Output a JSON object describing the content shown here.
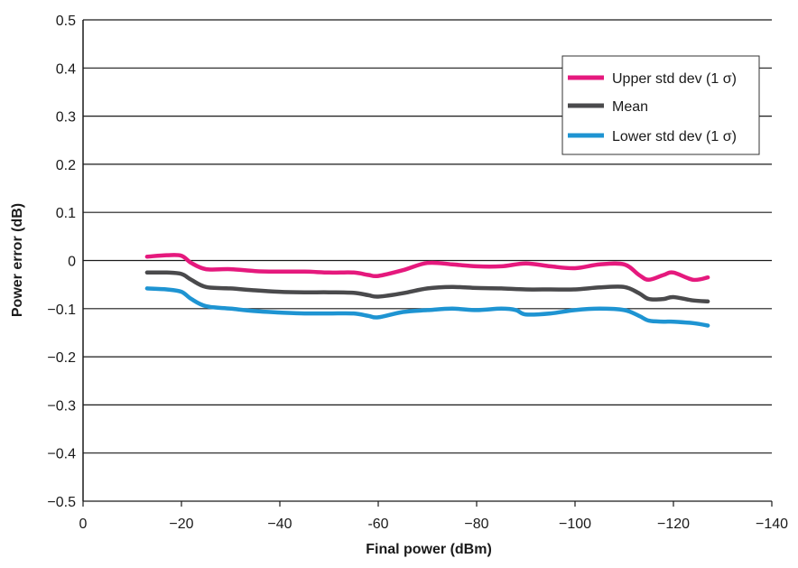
{
  "chart_data": {
    "type": "line",
    "xlabel": "Final power (dBm)",
    "ylabel": "Power error (dB)",
    "xlim": [
      0,
      -140
    ],
    "ylim": [
      -0.5,
      0.5
    ],
    "x_ticks": [
      0,
      -20,
      -40,
      -60,
      -80,
      -100,
      -120,
      -140
    ],
    "x_tick_labels": [
      "0",
      "−20",
      "−40",
      "-60",
      "−80",
      "−100",
      "−120",
      "−140"
    ],
    "y_ticks": [
      0.5,
      0.4,
      0.3,
      0.2,
      0.1,
      0,
      -0.1,
      -0.2,
      -0.3,
      -0.4,
      -0.5
    ],
    "y_tick_labels": [
      "0.5",
      "0.4",
      "0.3",
      "0.2",
      "0.1",
      "0",
      "−0.1",
      "−0.2",
      "−0.3",
      "−0.4",
      "−0.5"
    ],
    "grid": "horizontal",
    "legend_position": "top-right",
    "series": [
      {
        "name": "Upper std dev (1 σ)",
        "color": "#e5197d",
        "x": [
          -13,
          -17,
          -20,
          -22,
          -25,
          -30,
          -35,
          -40,
          -45,
          -50,
          -55,
          -58,
          -60,
          -65,
          -70,
          -75,
          -80,
          -85,
          -90,
          -95,
          -100,
          -105,
          -110,
          -113,
          -115,
          -118,
          -120,
          -124,
          -127
        ],
        "y": [
          0.008,
          0.011,
          0.01,
          -0.005,
          -0.018,
          -0.018,
          -0.022,
          -0.023,
          -0.023,
          -0.025,
          -0.025,
          -0.03,
          -0.032,
          -0.02,
          -0.005,
          -0.008,
          -0.012,
          -0.012,
          -0.006,
          -0.012,
          -0.016,
          -0.008,
          -0.008,
          -0.03,
          -0.04,
          -0.03,
          -0.025,
          -0.04,
          -0.035
        ]
      },
      {
        "name": "Mean",
        "color": "#4a4a4c",
        "x": [
          -13,
          -17,
          -20,
          -22,
          -25,
          -30,
          -35,
          -40,
          -45,
          -50,
          -55,
          -58,
          -60,
          -65,
          -70,
          -75,
          -80,
          -85,
          -90,
          -95,
          -100,
          -105,
          -110,
          -113,
          -115,
          -118,
          -120,
          -124,
          -127
        ],
        "y": [
          -0.025,
          -0.025,
          -0.028,
          -0.04,
          -0.055,
          -0.058,
          -0.062,
          -0.065,
          -0.066,
          -0.066,
          -0.067,
          -0.072,
          -0.075,
          -0.068,
          -0.058,
          -0.055,
          -0.057,
          -0.058,
          -0.06,
          -0.06,
          -0.06,
          -0.056,
          -0.055,
          -0.068,
          -0.08,
          -0.08,
          -0.076,
          -0.083,
          -0.085
        ]
      },
      {
        "name": "Lower std dev (1 σ)",
        "color": "#1e94d2",
        "x": [
          -13,
          -17,
          -20,
          -22,
          -25,
          -30,
          -35,
          -40,
          -45,
          -50,
          -55,
          -58,
          -60,
          -65,
          -70,
          -75,
          -80,
          -85,
          -88,
          -90,
          -95,
          -100,
          -105,
          -110,
          -113,
          -115,
          -118,
          -120,
          -124,
          -127
        ],
        "y": [
          -0.058,
          -0.06,
          -0.065,
          -0.08,
          -0.095,
          -0.1,
          -0.105,
          -0.108,
          -0.11,
          -0.11,
          -0.11,
          -0.115,
          -0.118,
          -0.107,
          -0.103,
          -0.1,
          -0.103,
          -0.1,
          -0.103,
          -0.112,
          -0.11,
          -0.103,
          -0.1,
          -0.103,
          -0.115,
          -0.125,
          -0.127,
          -0.127,
          -0.13,
          -0.135
        ]
      }
    ]
  }
}
